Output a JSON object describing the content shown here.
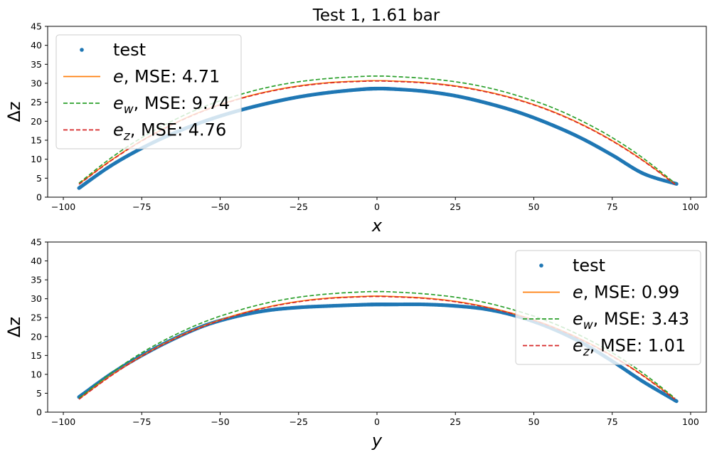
{
  "title": "Test 1, 1.61 bar",
  "chart_data": [
    {
      "type": "line",
      "xlabel": "x",
      "ylabel": "Δz",
      "xlim": [
        -105,
        105
      ],
      "ylim": [
        0,
        45
      ],
      "xticks": [
        -100,
        -75,
        -50,
        -25,
        0,
        25,
        50,
        75,
        100
      ],
      "xtick_labels": [
        "−100",
        "−75",
        "−50",
        "−25",
        "0",
        "25",
        "50",
        "75",
        "100"
      ],
      "yticks": [
        0,
        5,
        10,
        15,
        20,
        25,
        30,
        35,
        40,
        45
      ],
      "legend_position": "top-left",
      "series": [
        {
          "name": "test",
          "style": "points",
          "color": "#1f77b4",
          "x": [
            -95,
            -85,
            -75,
            -65,
            -55,
            -45,
            -35,
            -25,
            -15,
            -5,
            0,
            5,
            15,
            25,
            35,
            45,
            55,
            65,
            75,
            85,
            95.5
          ],
          "y": [
            2.4,
            8.2,
            12.9,
            16.8,
            20.0,
            22.6,
            24.7,
            26.4,
            27.6,
            28.4,
            28.6,
            28.5,
            27.9,
            26.7,
            24.8,
            22.4,
            19.3,
            15.6,
            11.1,
            6.2,
            3.5
          ]
        },
        {
          "name": "e, MSE: 4.71",
          "label_math": "e",
          "label_sub": "",
          "label_rest": ", MSE: 4.71",
          "style": "solid",
          "color": "#ff7f0e",
          "x": [
            -95,
            -85,
            -75,
            -65,
            -55,
            -45,
            -35,
            -25,
            -15,
            -5,
            0,
            5,
            15,
            25,
            35,
            45,
            55,
            65,
            75,
            85,
            95
          ],
          "y": [
            3.5,
            9.6,
            14.9,
            19.3,
            22.9,
            25.7,
            27.8,
            29.3,
            30.2,
            30.6,
            30.7,
            30.6,
            30.2,
            29.3,
            27.8,
            25.7,
            22.9,
            19.3,
            14.9,
            9.6,
            3.5
          ]
        },
        {
          "name": "e_w, MSE: 9.74",
          "label_math": "e",
          "label_sub": "w",
          "label_rest": ", MSE: 9.74",
          "style": "dashed",
          "color": "#2ca02c",
          "x": [
            -95,
            -85,
            -75,
            -65,
            -55,
            -45,
            -35,
            -25,
            -15,
            -5,
            0,
            5,
            15,
            25,
            35,
            45,
            55,
            65,
            75,
            85,
            95
          ],
          "y": [
            3.7,
            10.2,
            15.7,
            20.2,
            23.9,
            26.7,
            28.9,
            30.4,
            31.3,
            31.8,
            31.9,
            31.8,
            31.3,
            30.4,
            28.9,
            26.7,
            23.9,
            20.2,
            15.7,
            10.2,
            3.7
          ]
        },
        {
          "name": "e_z, MSE: 4.76",
          "label_math": "e",
          "label_sub": "z",
          "label_rest": ", MSE: 4.76",
          "style": "dashed",
          "color": "#d62728",
          "x": [
            -95,
            -85,
            -75,
            -65,
            -55,
            -45,
            -35,
            -25,
            -15,
            -5,
            0,
            5,
            15,
            25,
            35,
            45,
            55,
            65,
            75,
            85,
            95
          ],
          "y": [
            3.4,
            9.5,
            14.8,
            19.2,
            22.8,
            25.6,
            27.7,
            29.2,
            30.1,
            30.5,
            30.6,
            30.5,
            30.1,
            29.2,
            27.7,
            25.6,
            22.8,
            19.2,
            14.8,
            9.5,
            3.4
          ]
        }
      ]
    },
    {
      "type": "line",
      "xlabel": "y",
      "ylabel": "Δz",
      "xlim": [
        -105,
        105
      ],
      "ylim": [
        0,
        45
      ],
      "xticks": [
        -100,
        -75,
        -50,
        -25,
        0,
        25,
        50,
        75,
        100
      ],
      "xtick_labels": [
        "−100",
        "−75",
        "−50",
        "−25",
        "0",
        "25",
        "50",
        "75",
        "100"
      ],
      "yticks": [
        0,
        5,
        10,
        15,
        20,
        25,
        30,
        35,
        40,
        45
      ],
      "legend_position": "top-right",
      "series": [
        {
          "name": "test",
          "style": "points",
          "color": "#1f77b4",
          "x": [
            -95,
            -85,
            -75,
            -65,
            -55,
            -45,
            -35,
            -25,
            -15,
            -5,
            0,
            5,
            15,
            25,
            35,
            45,
            55,
            65,
            75,
            85,
            95.5
          ],
          "y": [
            4.0,
            10.0,
            15.0,
            19.3,
            22.9,
            25.3,
            26.9,
            27.7,
            28.1,
            28.4,
            28.5,
            28.5,
            28.5,
            28.1,
            27.2,
            25.3,
            22.4,
            18.5,
            13.5,
            8.0,
            2.9
          ]
        },
        {
          "name": "e, MSE: 0.99",
          "label_math": "e",
          "label_sub": "",
          "label_rest": ", MSE: 0.99",
          "style": "solid",
          "color": "#ff7f0e",
          "x": [
            -95,
            -85,
            -75,
            -65,
            -55,
            -45,
            -35,
            -25,
            -15,
            -5,
            0,
            5,
            15,
            25,
            35,
            45,
            55,
            65,
            75,
            85,
            95
          ],
          "y": [
            3.5,
            9.6,
            14.9,
            19.3,
            22.9,
            25.7,
            27.8,
            29.3,
            30.2,
            30.6,
            30.7,
            30.6,
            30.2,
            29.3,
            27.8,
            25.7,
            22.9,
            19.3,
            14.9,
            9.6,
            3.5
          ]
        },
        {
          "name": "e_w, MSE: 3.43",
          "label_math": "e",
          "label_sub": "w",
          "label_rest": ", MSE: 3.43",
          "style": "dashed",
          "color": "#2ca02c",
          "x": [
            -95,
            -85,
            -75,
            -65,
            -55,
            -45,
            -35,
            -25,
            -15,
            -5,
            0,
            5,
            15,
            25,
            35,
            45,
            55,
            65,
            75,
            85,
            95
          ],
          "y": [
            3.7,
            10.2,
            15.7,
            20.2,
            23.9,
            26.7,
            28.9,
            30.4,
            31.3,
            31.8,
            31.9,
            31.8,
            31.3,
            30.4,
            28.9,
            26.7,
            23.9,
            20.2,
            15.7,
            10.2,
            3.7
          ]
        },
        {
          "name": "e_z, MSE: 1.01",
          "label_math": "e",
          "label_sub": "z",
          "label_rest": ", MSE: 1.01",
          "style": "dashed",
          "color": "#d62728",
          "x": [
            -95,
            -85,
            -75,
            -65,
            -55,
            -45,
            -35,
            -25,
            -15,
            -5,
            0,
            5,
            15,
            25,
            35,
            45,
            55,
            65,
            75,
            85,
            95
          ],
          "y": [
            3.4,
            9.5,
            14.8,
            19.2,
            22.8,
            25.6,
            27.7,
            29.2,
            30.1,
            30.5,
            30.6,
            30.5,
            30.1,
            29.2,
            27.7,
            25.6,
            22.8,
            19.2,
            14.8,
            9.5,
            3.4
          ]
        }
      ]
    }
  ]
}
